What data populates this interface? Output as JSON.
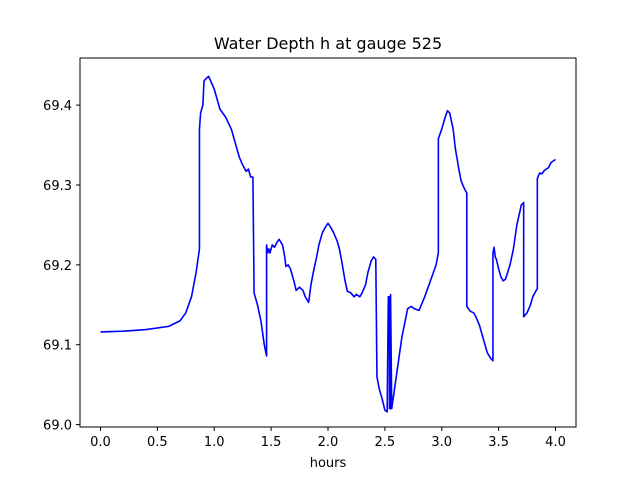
{
  "chart_data": {
    "type": "line",
    "title": "Water Depth h at gauge 525",
    "xlabel": "hours",
    "ylabel": "",
    "xlim": [
      -0.18,
      4.18
    ],
    "ylim": [
      68.997,
      69.459
    ],
    "xticks": [
      0.0,
      0.5,
      1.0,
      1.5,
      2.0,
      2.5,
      3.0,
      3.5,
      4.0
    ],
    "xtick_labels": [
      "0.0",
      "0.5",
      "1.0",
      "1.5",
      "2.0",
      "2.5",
      "3.0",
      "3.5",
      "4.0"
    ],
    "yticks": [
      69.0,
      69.1,
      69.2,
      69.3,
      69.4
    ],
    "ytick_labels": [
      "69.0",
      "69.1",
      "69.2",
      "69.3",
      "69.4"
    ],
    "grid": false,
    "legend": "none",
    "series": [
      {
        "color": "#0000ff",
        "x": [
          0.0,
          0.2,
          0.4,
          0.6,
          0.7,
          0.75,
          0.8,
          0.84,
          0.87,
          0.87,
          0.88,
          0.89,
          0.9,
          0.91,
          0.92,
          0.95,
          0.97,
          1.0,
          1.05,
          1.1,
          1.15,
          1.2,
          1.22,
          1.25,
          1.28,
          1.3,
          1.32,
          1.34,
          1.35,
          1.35,
          1.38,
          1.41,
          1.44,
          1.46,
          1.46,
          1.47,
          1.48,
          1.49,
          1.5,
          1.51,
          1.53,
          1.55,
          1.57,
          1.6,
          1.62,
          1.63,
          1.65,
          1.67,
          1.7,
          1.72,
          1.75,
          1.78,
          1.8,
          1.83,
          1.85,
          1.87,
          1.9,
          1.92,
          1.95,
          1.98,
          2.0,
          2.02,
          2.05,
          2.08,
          2.1,
          2.12,
          2.15,
          2.17,
          2.2,
          2.23,
          2.25,
          2.28,
          2.3,
          2.33,
          2.35,
          2.38,
          2.4,
          2.42,
          2.43,
          2.43,
          2.45,
          2.48,
          2.5,
          2.52,
          2.53,
          2.53,
          2.54,
          2.54,
          2.55,
          2.55,
          2.56,
          2.57,
          2.6,
          2.65,
          2.7,
          2.73,
          2.76,
          2.8,
          2.85,
          2.9,
          2.95,
          2.97,
          2.97,
          3.0,
          3.03,
          3.05,
          3.07,
          3.1,
          3.12,
          3.15,
          3.17,
          3.2,
          3.22,
          3.22,
          3.25,
          3.28,
          3.3,
          3.33,
          3.35,
          3.38,
          3.4,
          3.43,
          3.45,
          3.45,
          3.46,
          3.47,
          3.48,
          3.5,
          3.52,
          3.54,
          3.56,
          3.6,
          3.63,
          3.66,
          3.7,
          3.72,
          3.72,
          3.75,
          3.78,
          3.8,
          3.83,
          3.84,
          3.84,
          3.86,
          3.88,
          3.9,
          3.92,
          3.94,
          3.96,
          3.98,
          4.0
        ],
        "y": [
          69.116,
          69.117,
          69.119,
          69.123,
          69.13,
          69.14,
          69.16,
          69.19,
          69.22,
          69.37,
          69.39,
          69.395,
          69.4,
          69.43,
          69.432,
          69.436,
          69.43,
          69.42,
          69.395,
          69.385,
          69.37,
          69.345,
          69.335,
          69.325,
          69.317,
          69.32,
          69.31,
          69.31,
          69.17,
          69.165,
          69.15,
          69.13,
          69.1,
          69.086,
          69.225,
          69.215,
          69.22,
          69.215,
          69.22,
          69.225,
          69.222,
          69.228,
          69.232,
          69.225,
          69.21,
          69.198,
          69.2,
          69.195,
          69.18,
          69.168,
          69.172,
          69.168,
          69.16,
          69.153,
          69.175,
          69.19,
          69.21,
          69.225,
          69.24,
          69.248,
          69.252,
          69.248,
          69.24,
          69.23,
          69.22,
          69.205,
          69.18,
          69.167,
          69.165,
          69.16,
          69.163,
          69.16,
          69.165,
          69.175,
          69.19,
          69.205,
          69.21,
          69.207,
          69.065,
          69.06,
          69.045,
          69.03,
          69.018,
          69.016,
          69.155,
          69.16,
          69.16,
          69.02,
          69.02,
          69.163,
          69.02,
          69.03,
          69.06,
          69.11,
          69.145,
          69.148,
          69.145,
          69.143,
          69.16,
          69.18,
          69.2,
          69.215,
          69.358,
          69.37,
          69.385,
          69.393,
          69.39,
          69.37,
          69.345,
          69.32,
          69.305,
          69.295,
          69.29,
          69.148,
          69.142,
          69.14,
          69.135,
          69.125,
          69.115,
          69.1,
          69.09,
          69.083,
          69.08,
          69.215,
          69.222,
          69.21,
          69.207,
          69.195,
          69.185,
          69.18,
          69.182,
          69.2,
          69.22,
          69.25,
          69.275,
          69.278,
          69.135,
          69.14,
          69.15,
          69.16,
          69.168,
          69.17,
          69.308,
          69.315,
          69.314,
          69.318,
          69.32,
          69.322,
          69.328,
          69.33,
          69.332
        ]
      }
    ]
  }
}
